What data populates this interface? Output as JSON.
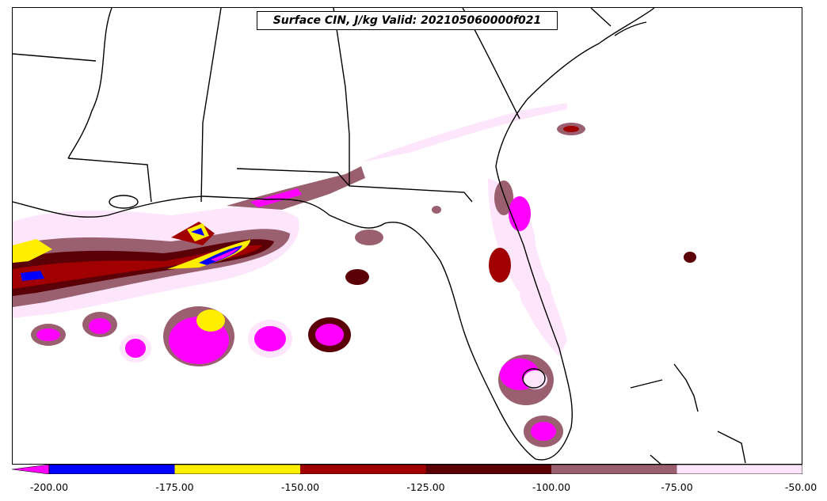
{
  "title": "Surface CIN, J/kg Valid: 202105060000f021",
  "colorbar": {
    "ticks": [
      "-200.00",
      "-175.00",
      "-150.00",
      "-125.00",
      "-100.00",
      "-75.00",
      "-50.00"
    ],
    "colors": [
      "#ff00ff",
      "#0000ff",
      "#ffee00",
      "#a00000",
      "#5c0008",
      "#9a6070",
      "#fde6fc"
    ]
  },
  "palette": {
    "land_outline": "#000000",
    "water_background": "#ffffff"
  }
}
